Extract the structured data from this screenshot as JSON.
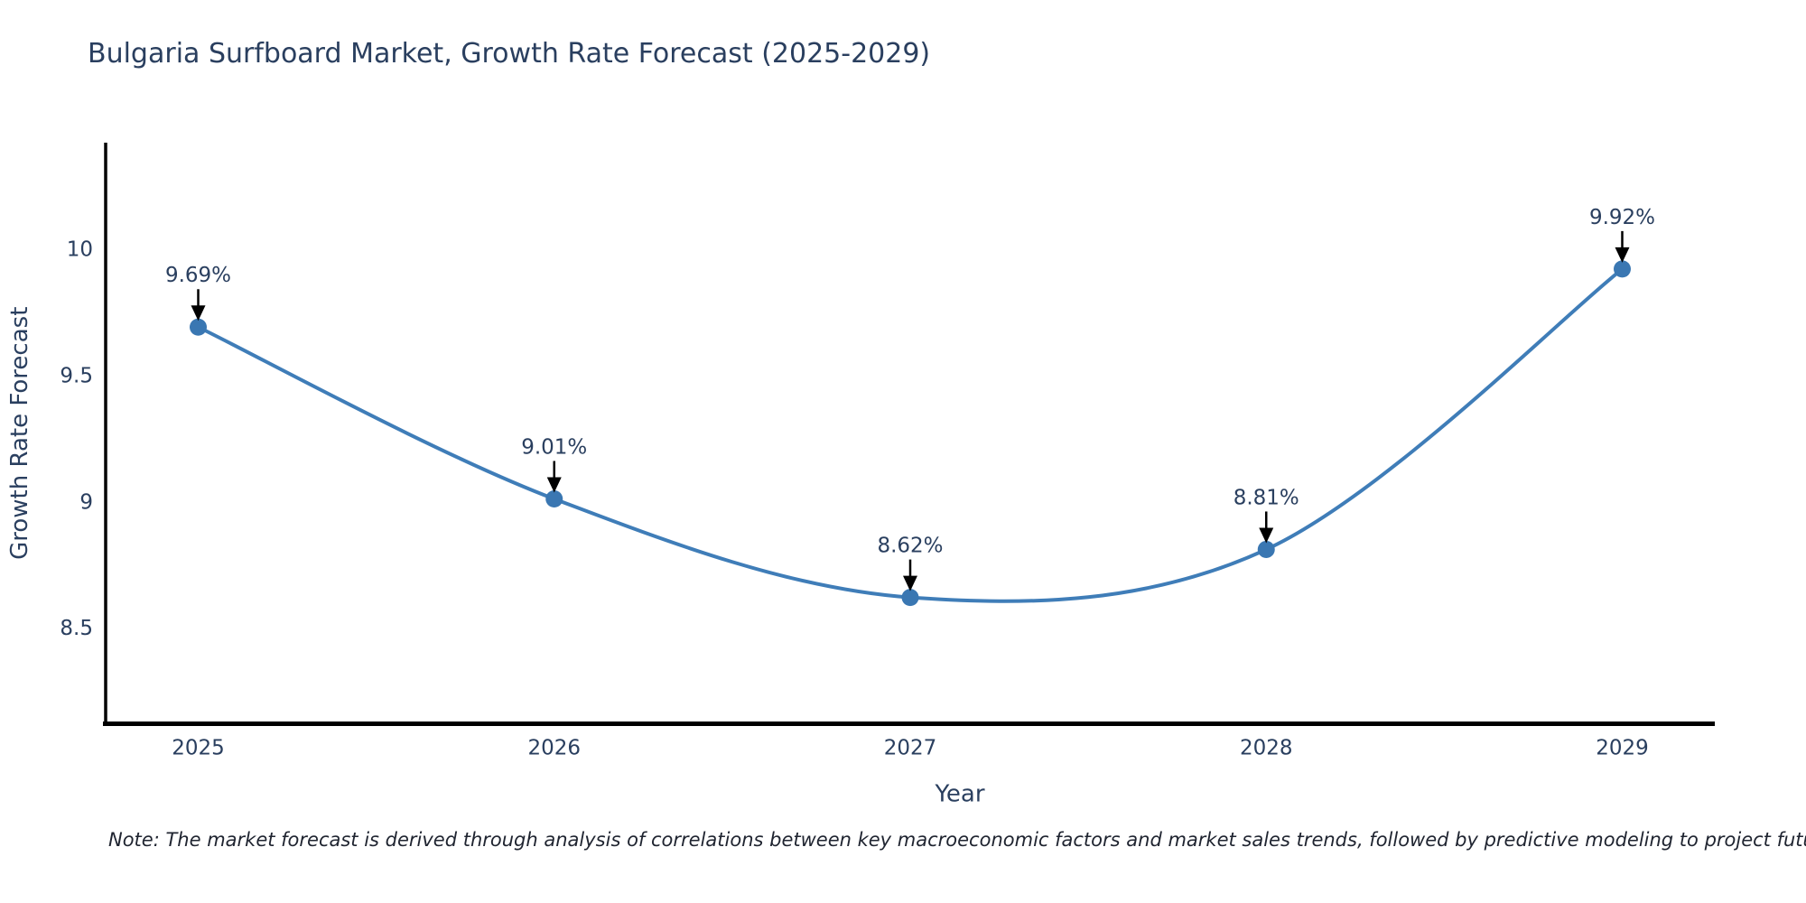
{
  "header": {
    "title": "Bulgaria Surfboard Market, Growth Rate Forecast (2025-2029)"
  },
  "chart_data": {
    "type": "line",
    "line_shape": "spline",
    "x": [
      2025,
      2026,
      2027,
      2028,
      2029
    ],
    "values": [
      9.69,
      9.01,
      8.62,
      8.81,
      9.92
    ],
    "point_labels": [
      "9.69%",
      "9.01%",
      "8.62%",
      "8.81%",
      "9.92%"
    ],
    "title": "Bulgaria Surfboard Market, Growth Rate Forecast (2025-2029)",
    "xlabel": "Year",
    "ylabel": "Growth Rate Forecast",
    "xticks": [
      "2025",
      "2026",
      "2027",
      "2028",
      "2029"
    ],
    "yticks": [
      "8.5",
      "9",
      "9.5",
      "10"
    ],
    "ytick_values": [
      8.5,
      9,
      9.5,
      10
    ],
    "xlim": [
      2024.74,
      2029.26
    ],
    "ylim": [
      8.12,
      10.42
    ],
    "grid": false,
    "legend": false,
    "annotations": "black down-arrows from each percent label to its data point",
    "line_color": "#3f7db8",
    "marker_color": "#3a77b2",
    "arrow_color": "#000000",
    "axis_line_color": "#000000",
    "text_color": "#2a3f5f"
  },
  "footer": {
    "note": "Note: The market forecast is derived through analysis of correlations between key macroeconomic factors and market sales trends, followed by predictive modeling to project future sales"
  }
}
